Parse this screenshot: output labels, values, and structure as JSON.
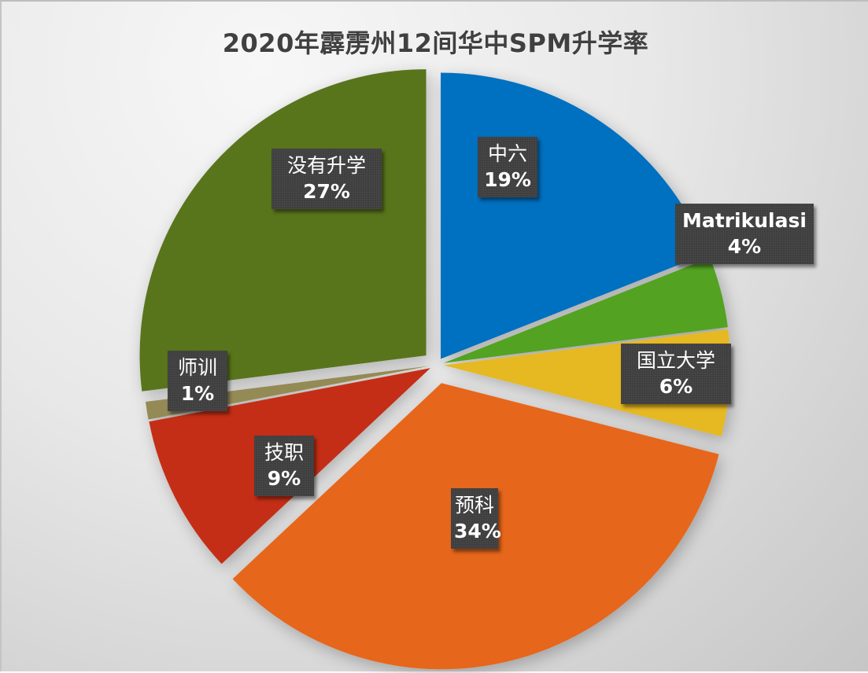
{
  "chart_data": {
    "type": "pie",
    "title": "2020年霹雳州12间华中SPM升学率",
    "categories": [
      "中六",
      "Matrikulasi",
      "国立大学",
      "预科",
      "技职",
      "师训",
      "没有升学"
    ],
    "values": [
      19,
      4,
      6,
      34,
      9,
      1,
      27
    ],
    "unit": "%",
    "colors": [
      "#0070C0",
      "#52A222",
      "#E6B820",
      "#E6661A",
      "#C42E18",
      "#948A54",
      "#58741C"
    ],
    "exploded": true,
    "start_angle_deg": 0,
    "direction": "clockwise",
    "legend": "none",
    "data_labels": "category and percentage"
  },
  "labels": [
    {
      "category": "中六",
      "percent": "19%"
    },
    {
      "category": "Matrikulasi",
      "percent": "4%"
    },
    {
      "category": "国立大学",
      "percent": "6%"
    },
    {
      "category": "预科",
      "percent": "34%"
    },
    {
      "category": "技职",
      "percent": "9%"
    },
    {
      "category": "师训",
      "percent": "1%"
    },
    {
      "category": "没有升学",
      "percent": "27%"
    }
  ]
}
